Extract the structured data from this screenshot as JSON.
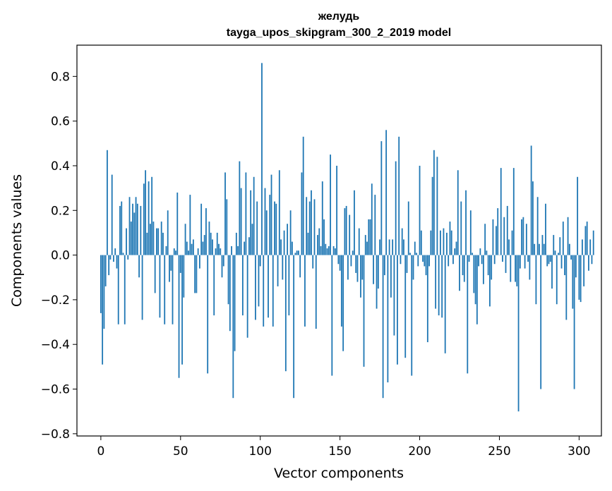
{
  "chart_data": {
    "type": "bar",
    "title": "желудь",
    "subtitle": "tayga_upos_skipgram_300_2_2019 model",
    "xlabel": "Vector components",
    "ylabel": "Components values",
    "xlim": [
      -15,
      314
    ],
    "ylim": [
      -0.81,
      0.94
    ],
    "xticks": [
      0,
      50,
      100,
      150,
      200,
      250,
      300
    ],
    "xtick_labels": [
      "0",
      "50",
      "100",
      "150",
      "200",
      "250",
      "300"
    ],
    "yticks": [
      -0.8,
      -0.6,
      -0.4,
      -0.2,
      0.0,
      0.2,
      0.4,
      0.6,
      0.8
    ],
    "ytick_labels": [
      "−0.8",
      "−0.6",
      "−0.4",
      "−0.2",
      "0.0",
      "0.2",
      "0.4",
      "0.6",
      "0.8"
    ],
    "bar_color": "#1f77b4",
    "values": [
      -0.26,
      -0.49,
      -0.33,
      -0.14,
      0.47,
      -0.09,
      -0.02,
      0.36,
      -0.03,
      0.03,
      -0.06,
      -0.31,
      0.22,
      0.24,
      0.01,
      -0.31,
      0.12,
      -0.02,
      0.26,
      0.15,
      0.23,
      0.19,
      0.26,
      0.23,
      -0.1,
      0.22,
      -0.29,
      0.32,
      0.38,
      0.1,
      0.33,
      0.14,
      0.35,
      0.15,
      -0.17,
      0.12,
      0.12,
      -0.28,
      0.15,
      0.1,
      -0.31,
      0.04,
      0.2,
      -0.12,
      -0.07,
      -0.31,
      0.03,
      0.02,
      0.28,
      -0.55,
      -0.08,
      -0.49,
      -0.19,
      0.14,
      0.06,
      0.02,
      0.27,
      0.05,
      0.07,
      -0.17,
      -0.17,
      0.03,
      -0.06,
      0.23,
      0.06,
      0.09,
      0.21,
      -0.53,
      0.15,
      0.1,
      0.07,
      -0.27,
      0.03,
      0.1,
      0.05,
      0.03,
      -0.1,
      -0.05,
      0.37,
      0.25,
      -0.22,
      -0.34,
      0.04,
      -0.64,
      -0.43,
      0.1,
      0.04,
      0.42,
      0.3,
      -0.27,
      0.06,
      0.37,
      -0.37,
      0.08,
      0.29,
      0.14,
      0.35,
      -0.29,
      0.24,
      -0.23,
      -0.05,
      0.86,
      -0.32,
      0.3,
      0.2,
      -0.28,
      0.27,
      0.36,
      -0.32,
      0.24,
      0.23,
      -0.14,
      0.38,
      0.07,
      -0.11,
      0.11,
      -0.52,
      0.14,
      -0.27,
      0.2,
      0.06,
      -0.64,
      0.01,
      0.02,
      0.02,
      -0.1,
      0.37,
      0.53,
      -0.32,
      0.26,
      0.1,
      0.24,
      0.29,
      -0.06,
      0.25,
      -0.33,
      0.09,
      0.12,
      0.04,
      0.33,
      0.16,
      0.05,
      0.03,
      0.04,
      0.45,
      -0.54,
      0.04,
      0.03,
      0.4,
      -0.04,
      -0.07,
      -0.32,
      -0.43,
      0.21,
      0.22,
      -0.11,
      0.18,
      -0.05,
      0.02,
      0.29,
      -0.08,
      -0.12,
      0.12,
      -0.19,
      -0.11,
      -0.5,
      0.09,
      0.06,
      0.16,
      0.16,
      0.32,
      -0.13,
      0.27,
      -0.24,
      -0.15,
      0.07,
      0.51,
      -0.64,
      -0.09,
      0.56,
      -0.57,
      0.07,
      -0.19,
      0.07,
      -0.36,
      0.42,
      -0.49,
      0.53,
      -0.04,
      0.12,
      0.07,
      -0.46,
      -0.08,
      0.24,
      0.01,
      -0.54,
      -0.11,
      0.06,
      0.01,
      -0.05,
      0.4,
      0.11,
      -0.03,
      -0.05,
      -0.09,
      -0.39,
      -0.05,
      0.11,
      0.35,
      0.47,
      -0.24,
      0.44,
      -0.27,
      0.11,
      -0.28,
      0.12,
      -0.44,
      0.1,
      -0.05,
      0.15,
      0.11,
      -0.04,
      0.03,
      0.06,
      0.38,
      -0.16,
      0.24,
      -0.09,
      -0.12,
      0.29,
      -0.53,
      -0.03,
      0.2,
      0.01,
      -0.17,
      -0.22,
      -0.31,
      -0.05,
      0.03,
      -0.04,
      -0.13,
      0.14,
      0.02,
      -0.09,
      -0.23,
      -0.11,
      0.16,
      -0.04,
      0.13,
      0.21,
      0.0,
      0.39,
      -0.03,
      0.17,
      -0.08,
      0.22,
      0.07,
      -0.12,
      0.11,
      0.39,
      -0.12,
      -0.14,
      -0.7,
      -0.06,
      0.16,
      0.17,
      -0.06,
      0.14,
      -0.03,
      -0.11,
      0.49,
      0.33,
      0.05,
      -0.22,
      0.26,
      0.05,
      -0.6,
      0.09,
      0.05,
      0.23,
      -0.05,
      -0.04,
      -0.03,
      -0.15,
      0.09,
      0.02,
      -0.22,
      0.01,
      0.08,
      -0.06,
      0.15,
      -0.09,
      -0.29,
      0.17,
      0.05,
      -0.02,
      -0.24,
      -0.6,
      -0.1,
      0.35,
      -0.2,
      -0.21,
      0.07,
      -0.14,
      0.13,
      0.15,
      -0.07,
      0.07,
      -0.04,
      0.11
    ]
  }
}
